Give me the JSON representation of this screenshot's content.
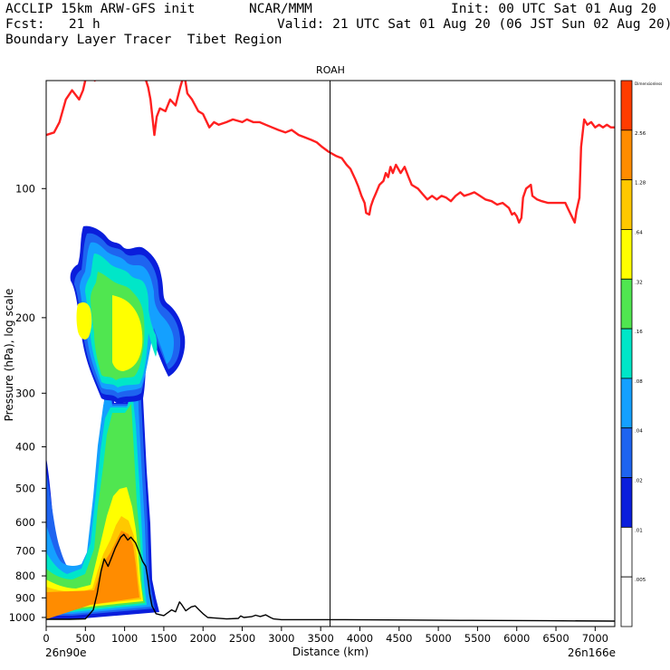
{
  "header": {
    "line1_left": "ACCLIP 15km ARW-GFS init",
    "line1_center": "NCAR/MMM",
    "line1_right": "Init: 00 UTC Sat 01 Aug 20",
    "line2_left": "Fcst:   21 h",
    "line2_right": "Valid: 21 UTC Sat 01 Aug 20 (06 JST Sun 02 Aug 20)",
    "line3_left": "Boundary Layer Tracer  Tibet Region"
  },
  "chart_data": {
    "type": "heatmap",
    "title": "ROAH",
    "xlabel": "Distance (km)",
    "ylabel": "Pressure (hPa), log scale",
    "xlim": [
      0,
      7250
    ],
    "ylim": [
      1050,
      56
    ],
    "x_ticks": [
      0,
      500,
      1000,
      1500,
      2000,
      2500,
      3000,
      3500,
      4000,
      4500,
      5000,
      5500,
      6000,
      6500,
      7000
    ],
    "y_ticks": [
      100,
      200,
      300,
      400,
      500,
      600,
      700,
      800,
      900,
      1000
    ],
    "start_label": "26n90e",
    "end_label": "26n166e",
    "marker_x": 3620,
    "colorbar": {
      "labels": [
        "Dimensionless",
        "2.56",
        "1.28",
        ".64",
        ".32",
        ".16",
        ".08",
        ".04",
        ".02",
        ".01",
        ".005"
      ],
      "colors": [
        "#ff3c00",
        "#ff8c00",
        "#ffc800",
        "#ffff00",
        "#50e650",
        "#00e6c8",
        "#14a0ff",
        "#1e64f0",
        "#0a1edc",
        "#ffffff",
        "#ffffff"
      ]
    },
    "series": [
      {
        "name": "tropopause",
        "color": "#ff2020",
        "points": [
          [
            0,
            75
          ],
          [
            100,
            74
          ],
          [
            170,
            70
          ],
          [
            250,
            62
          ],
          [
            330,
            59
          ],
          [
            420,
            62
          ],
          [
            470,
            59
          ],
          [
            560,
            50
          ],
          [
            620,
            56
          ],
          [
            680,
            53
          ],
          [
            730,
            47
          ],
          [
            760,
            46
          ],
          [
            830,
            44
          ],
          [
            880,
            44
          ],
          [
            960,
            43
          ],
          [
            1060,
            43
          ],
          [
            1180,
            44
          ],
          [
            1260,
            55
          ],
          [
            1300,
            58
          ],
          [
            1330,
            62
          ],
          [
            1380,
            75
          ],
          [
            1410,
            68
          ],
          [
            1450,
            65
          ],
          [
            1520,
            66
          ],
          [
            1580,
            62
          ],
          [
            1650,
            64
          ],
          [
            1710,
            58
          ],
          [
            1760,
            54
          ],
          [
            1800,
            60
          ],
          [
            1860,
            62
          ],
          [
            1940,
            66
          ],
          [
            2000,
            67
          ],
          [
            2080,
            72
          ],
          [
            2140,
            70
          ],
          [
            2200,
            71
          ],
          [
            2300,
            70
          ],
          [
            2380,
            69
          ],
          [
            2500,
            70
          ],
          [
            2560,
            69
          ],
          [
            2640,
            70
          ],
          [
            2720,
            70
          ],
          [
            2800,
            71
          ],
          [
            2880,
            72
          ],
          [
            2960,
            73
          ],
          [
            3050,
            74
          ],
          [
            3130,
            73
          ],
          [
            3220,
            75
          ],
          [
            3300,
            76
          ],
          [
            3380,
            77
          ],
          [
            3450,
            78
          ],
          [
            3520,
            80
          ],
          [
            3600,
            82
          ],
          [
            3700,
            84
          ],
          [
            3770,
            85
          ],
          [
            3830,
            88
          ],
          [
            3880,
            90
          ],
          [
            3940,
            95
          ],
          [
            3980,
            99
          ],
          [
            4020,
            104
          ],
          [
            4060,
            108
          ],
          [
            4080,
            114
          ],
          [
            4120,
            115
          ],
          [
            4140,
            110
          ],
          [
            4170,
            106
          ],
          [
            4200,
            103
          ],
          [
            4250,
            98
          ],
          [
            4300,
            96
          ],
          [
            4330,
            92
          ],
          [
            4360,
            94
          ],
          [
            4390,
            89
          ],
          [
            4420,
            92
          ],
          [
            4460,
            88
          ],
          [
            4520,
            92
          ],
          [
            4570,
            89
          ],
          [
            4620,
            94
          ],
          [
            4660,
            98
          ],
          [
            4740,
            100
          ],
          [
            4800,
            103
          ],
          [
            4860,
            106
          ],
          [
            4920,
            104
          ],
          [
            4980,
            106
          ],
          [
            5040,
            104
          ],
          [
            5100,
            105
          ],
          [
            5160,
            107
          ],
          [
            5220,
            104
          ],
          [
            5280,
            102
          ],
          [
            5330,
            104
          ],
          [
            5400,
            103
          ],
          [
            5460,
            102
          ],
          [
            5530,
            104
          ],
          [
            5600,
            106
          ],
          [
            5680,
            107
          ],
          [
            5750,
            109
          ],
          [
            5820,
            108
          ],
          [
            5900,
            111
          ],
          [
            5940,
            115
          ],
          [
            5970,
            114
          ],
          [
            6000,
            116
          ],
          [
            6030,
            120
          ],
          [
            6060,
            117
          ],
          [
            6080,
            105
          ],
          [
            6120,
            100
          ],
          [
            6180,
            98
          ],
          [
            6200,
            104
          ],
          [
            6260,
            106
          ],
          [
            6320,
            107
          ],
          [
            6400,
            108
          ],
          [
            6480,
            108
          ],
          [
            6560,
            108
          ],
          [
            6620,
            108
          ],
          [
            6660,
            112
          ],
          [
            6700,
            116
          ],
          [
            6740,
            120
          ],
          [
            6760,
            113
          ],
          [
            6800,
            105
          ],
          [
            6820,
            80
          ],
          [
            6860,
            69
          ],
          [
            6900,
            71
          ],
          [
            6950,
            70
          ],
          [
            7000,
            72
          ],
          [
            7050,
            71
          ],
          [
            7100,
            72
          ],
          [
            7150,
            71
          ],
          [
            7200,
            72
          ],
          [
            7250,
            72
          ]
        ]
      },
      {
        "name": "terrain",
        "color": "#000000",
        "points": [
          [
            0,
            1010
          ],
          [
            300,
            1010
          ],
          [
            500,
            1008
          ],
          [
            600,
            960
          ],
          [
            650,
            880
          ],
          [
            700,
            780
          ],
          [
            740,
            730
          ],
          [
            790,
            760
          ],
          [
            840,
            720
          ],
          [
            880,
            690
          ],
          [
            950,
            650
          ],
          [
            990,
            640
          ],
          [
            1040,
            660
          ],
          [
            1080,
            650
          ],
          [
            1140,
            670
          ],
          [
            1180,
            700
          ],
          [
            1230,
            740
          ],
          [
            1270,
            760
          ],
          [
            1300,
            820
          ],
          [
            1320,
            880
          ],
          [
            1350,
            940
          ],
          [
            1400,
            980
          ],
          [
            1450,
            985
          ],
          [
            1500,
            990
          ],
          [
            1600,
            960
          ],
          [
            1650,
            970
          ],
          [
            1700,
            920
          ],
          [
            1730,
            935
          ],
          [
            1780,
            965
          ],
          [
            1850,
            945
          ],
          [
            1900,
            940
          ],
          [
            1950,
            960
          ],
          [
            2000,
            980
          ],
          [
            2060,
            1000
          ],
          [
            2150,
            1003
          ],
          [
            2300,
            1008
          ],
          [
            2450,
            1005
          ],
          [
            2480,
            992
          ],
          [
            2520,
            1000
          ],
          [
            2620,
            996
          ],
          [
            2670,
            988
          ],
          [
            2730,
            995
          ],
          [
            2800,
            986
          ],
          [
            2860,
            1000
          ],
          [
            2900,
            1008
          ],
          [
            3000,
            1012
          ],
          [
            3620,
            1012
          ],
          [
            4600,
            1014
          ],
          [
            5400,
            1016
          ],
          [
            6400,
            1018
          ],
          [
            7250,
            1020
          ]
        ]
      }
    ],
    "contour_levels": [
      ".005",
      ".01",
      ".02",
      ".04",
      ".08",
      ".16",
      ".32",
      ".64",
      "1.28",
      "2.56"
    ]
  }
}
